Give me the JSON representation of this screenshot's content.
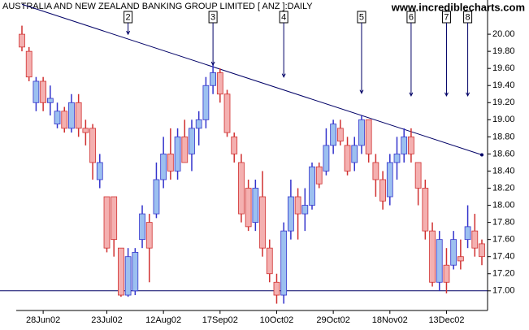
{
  "chart_data": {
    "type": "candlestick",
    "title": "AUSTRALIA AND NEW ZEALAND BANKING GROUP LIMITED [ ANZ ]:DAILY",
    "watermark": "www.incrediblecharts.com",
    "categories": [
      null,
      null,
      null,
      "28Jun02",
      null,
      null,
      null,
      null,
      null,
      null,
      null,
      null,
      "23Jul02",
      null,
      null,
      null,
      null,
      null,
      null,
      null,
      "12Aug02",
      null,
      null,
      null,
      null,
      null,
      null,
      null,
      "17Sep02",
      null,
      null,
      null,
      null,
      null,
      null,
      null,
      "10Oct02",
      null,
      null,
      null,
      null,
      null,
      null,
      null,
      "29Oct02",
      null,
      null,
      null,
      null,
      null,
      null,
      null,
      "18Nov02",
      null,
      null,
      null,
      null,
      null,
      null,
      null,
      "13Dec02",
      null,
      null,
      null,
      null,
      null
    ],
    "open": [
      20.0,
      19.8,
      19.2,
      19.45,
      19.2,
      18.95,
      19.1,
      18.9,
      19.2,
      18.9,
      18.9,
      18.3,
      18.1,
      18.1,
      17.5,
      16.95,
      17.0,
      17.6,
      17.8,
      17.9,
      18.3,
      18.6,
      18.4,
      18.8,
      18.6,
      18.9,
      19.0,
      19.4,
      19.55,
      19.3,
      18.8,
      18.5,
      18.2,
      17.8,
      18.1,
      17.5,
      17.1,
      16.95,
      17.7,
      18.1,
      17.9,
      18.0,
      18.45,
      18.4,
      18.7,
      18.9,
      18.7,
      18.5,
      18.7,
      19.0,
      18.5,
      18.3,
      18.1,
      18.5,
      18.6,
      18.8,
      18.5,
      18.2,
      17.7,
      17.1,
      17.3,
      17.3,
      17.4,
      17.6,
      17.7,
      17.55
    ],
    "high": [
      20.1,
      19.85,
      19.5,
      19.5,
      19.4,
      19.2,
      19.15,
      19.3,
      19.3,
      19.0,
      18.95,
      18.6,
      18.1,
      18.1,
      17.5,
      17.5,
      17.5,
      18.0,
      17.9,
      18.5,
      18.8,
      18.9,
      18.9,
      19.0,
      19.0,
      19.1,
      19.5,
      19.65,
      19.6,
      19.35,
      18.85,
      18.6,
      18.3,
      18.3,
      18.4,
      17.6,
      17.2,
      17.8,
      18.3,
      18.2,
      18.2,
      18.5,
      18.5,
      18.9,
      19.0,
      19.0,
      18.8,
      18.8,
      19.05,
      19.0,
      18.6,
      18.4,
      18.6,
      18.8,
      18.9,
      18.9,
      18.5,
      18.3,
      17.8,
      17.7,
      17.5,
      17.7,
      17.6,
      18.0,
      17.9,
      17.6
    ],
    "low": [
      19.8,
      19.45,
      19.1,
      19.1,
      19.05,
      18.9,
      18.85,
      18.85,
      18.8,
      18.7,
      18.3,
      18.2,
      17.45,
      17.4,
      16.93,
      16.93,
      16.95,
      17.5,
      17.1,
      17.85,
      18.2,
      18.3,
      18.3,
      18.5,
      18.4,
      18.7,
      18.9,
      19.3,
      19.2,
      18.8,
      18.5,
      17.8,
      17.7,
      17.7,
      17.4,
      17.1,
      16.85,
      16.85,
      17.6,
      17.6,
      17.7,
      17.95,
      18.2,
      18.35,
      18.6,
      18.7,
      18.35,
      18.4,
      18.6,
      18.5,
      18.1,
      17.95,
      18.0,
      18.3,
      18.5,
      18.5,
      18.0,
      17.6,
      17.05,
      17.0,
      16.97,
      17.25,
      17.25,
      17.5,
      17.4,
      17.3
    ],
    "close": [
      19.85,
      19.5,
      19.45,
      19.2,
      19.25,
      19.1,
      18.9,
      19.2,
      18.9,
      18.85,
      18.5,
      18.5,
      17.5,
      17.6,
      16.95,
      17.4,
      17.45,
      17.9,
      17.5,
      18.3,
      18.6,
      18.4,
      18.8,
      18.5,
      18.9,
      19.0,
      19.4,
      19.55,
      19.3,
      18.85,
      18.6,
      17.9,
      17.75,
      18.2,
      17.5,
      17.2,
      16.95,
      17.7,
      18.1,
      17.9,
      18.0,
      18.45,
      18.25,
      18.7,
      18.95,
      18.75,
      18.4,
      18.7,
      19.0,
      18.6,
      18.3,
      18.05,
      18.5,
      18.6,
      18.8,
      18.6,
      18.2,
      17.7,
      17.1,
      17.6,
      17.1,
      17.6,
      17.35,
      17.75,
      17.5,
      17.4
    ],
    "up_color": "#3333cc",
    "up_fill": "#9cc0f0",
    "down_color": "#d03030",
    "down_fill": "#f4b0b0",
    "trendline": {
      "start": 0,
      "end": 65,
      "values": [
        20.35,
        18.59
      ],
      "color": "#000066"
    },
    "support": {
      "value": 17.0,
      "color": "#000066"
    },
    "markers": [
      {
        "label": "2",
        "index": 15,
        "value": 20.0
      },
      {
        "label": "3",
        "index": 27,
        "value": 19.64
      },
      {
        "label": "4",
        "index": 37,
        "value": 19.5
      },
      {
        "label": "5",
        "index": 48,
        "value": 19.31
      },
      {
        "label": "6",
        "index": 55,
        "value": 19.28
      },
      {
        "label": "7",
        "index": 60,
        "value": 19.28
      },
      {
        "label": "8",
        "index": 63,
        "value": 19.28
      }
    ],
    "ylim": [
      16.77,
      20.4
    ],
    "yticks": [
      {
        "value": 17.0,
        "label": "17.00"
      },
      {
        "value": 17.2,
        "label": "17.20"
      },
      {
        "value": 17.4,
        "label": "17.40"
      },
      {
        "value": 17.6,
        "label": "17.60"
      },
      {
        "value": 17.8,
        "label": "17.80"
      },
      {
        "value": 18.0,
        "label": "18.00"
      },
      {
        "value": 18.2,
        "label": "18.20"
      },
      {
        "value": 18.4,
        "label": "18.40"
      },
      {
        "value": 18.6,
        "label": "18.60"
      },
      {
        "value": 18.8,
        "label": "18.80"
      },
      {
        "value": 19.0,
        "label": "19.00"
      },
      {
        "value": 19.2,
        "label": "19.20"
      },
      {
        "value": 19.4,
        "label": "19.40"
      },
      {
        "value": 19.6,
        "label": "19.60"
      },
      {
        "value": 19.8,
        "label": "19.80"
      },
      {
        "value": 20.0,
        "label": "20.00"
      }
    ]
  }
}
